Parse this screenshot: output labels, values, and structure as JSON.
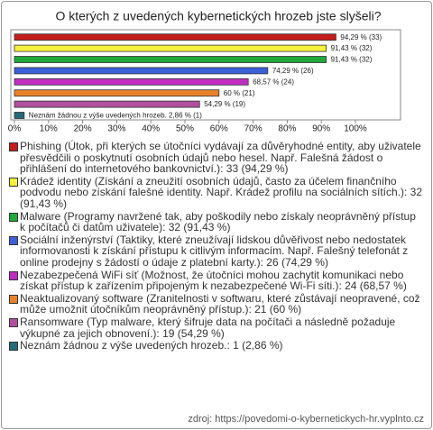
{
  "chart_data": {
    "type": "bar",
    "orientation": "horizontal",
    "title": "O kterých z uvedených kybernetických hrozeb jste slyšeli?",
    "categories": [
      "Phishing (Útok, při kterých se útočníci vydávají za důvěryhodné entity, aby uživatele přesvědčili o poskytnutí osobních údajů nebo hesel. Např. Falešná žádost o přihlášení do internetového bankovnictví.): 33 (94,29 %)",
      "Krádež identity (Získání a zneužití osobních údajů, často za účelem finančního podvodu nebo získání falešné identity. Např. Krádež profilu na sociálních sítích.): 32 (91,43 %)",
      "Malware (Programy navržené tak, aby poškodily nebo získaly neoprávněný přístup k počítačů či datům uživatele): 32 (91,43 %)",
      "Sociální inženýrství (Taktiky, které zneužívají lidskou důvěřivost nebo nedostatek informovanosti k získání přístupu k citlivým informacím. Např. Falešný telefonát z online prodejny s žádostí o údaje z platební karty.): 26 (74,29 %)",
      "Nezabezpečená WiFi síť (Možnost, že útočníci mohou zachytit komunikaci nebo získat přístup k zařízením připojeným k nezabezpečené Wi-Fi síti.): 24 (68,57 %)",
      "Neaktualizovaný software (Zranitelnosti v softwaru, které zůstávají neopravené, což může umožnit útočníkům neoprávněný přístup.): 21 (60 %)",
      "Ransomware (Typ malware, který šifruje data na počítači a následně požaduje výkupné za jejich obnovení.): 19 (54,29 %)",
      "Neznám žádnou z výše uvedených hrozeb.: 1 (2,86 %)"
    ],
    "values": [
      94.29,
      91.43,
      91.43,
      74.29,
      68.57,
      60,
      54.29,
      2.86
    ],
    "value_labels": [
      "94,29 % (33)",
      "91,43 % (32)",
      "91,43 % (32)",
      "74,29 % (26)",
      "68,57 % (24)",
      "60 % (21)",
      "54,29 % (19)",
      "Neznám žádnou z výše uvedených hrozeb. 2,86 % (1)"
    ],
    "colors": [
      "#c41e1e",
      "#f5f03c",
      "#22a83a",
      "#3a5fd8",
      "#c02ec0",
      "#e8822a",
      "#b0509e",
      "#246b78"
    ],
    "xlim": [
      0,
      100
    ],
    "xticks": [
      {
        "value": 0,
        "label": "0%"
      },
      {
        "value": 10,
        "label": "10%"
      },
      {
        "value": 20,
        "label": "20%"
      },
      {
        "value": 30,
        "label": "30%"
      },
      {
        "value": 40,
        "label": "40%"
      },
      {
        "value": 50,
        "label": "50%"
      },
      {
        "value": 60,
        "label": "60%"
      },
      {
        "value": 70,
        "label": "70%"
      },
      {
        "value": 80,
        "label": "80%"
      },
      {
        "value": 90,
        "label": "90%"
      },
      {
        "value": 100,
        "label": "100%"
      }
    ],
    "source": "zdroj: https://povedomi-o-kybernetickych-hr.vyplnto.cz"
  }
}
